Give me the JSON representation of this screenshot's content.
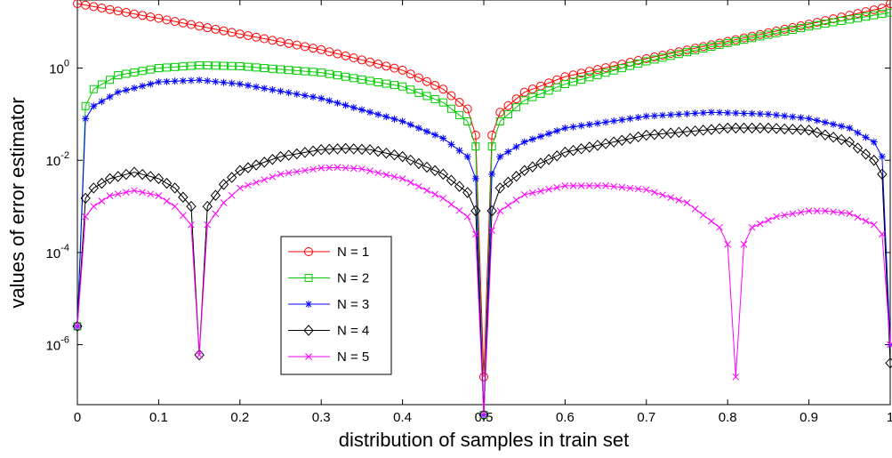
{
  "chart_data": {
    "type": "line",
    "title": "",
    "xlabel": "distribution of samples in train set",
    "ylabel": "values of error estimator",
    "xlim": [
      0,
      1
    ],
    "ylim": [
      5e-08,
      30
    ],
    "yscale": "log",
    "xticks": [
      "0",
      "0.1",
      "0.2",
      "0.3",
      "0.4",
      "0.5",
      "0.6",
      "0.7",
      "0.8",
      "0.9",
      "1"
    ],
    "yticks": [
      {
        "value": 1,
        "label": "10",
        "exp": "0"
      },
      {
        "value": 0.01,
        "label": "10",
        "exp": "-2"
      },
      {
        "value": 0.0001,
        "label": "10",
        "exp": "-4"
      },
      {
        "value": 1e-06,
        "label": "10",
        "exp": "-6"
      }
    ],
    "grid": false,
    "legend_position": "lower-left",
    "series": [
      {
        "name": "N = 1",
        "color": "#ff0000",
        "marker": "circle",
        "x": [
          0,
          0.1,
          0.2,
          0.3,
          0.4,
          0.45,
          0.48,
          0.49,
          0.5,
          0.51,
          0.52,
          0.55,
          0.6,
          0.7,
          0.8,
          0.9,
          0.99,
          1
        ],
        "y": [
          25,
          12,
          5.5,
          2.5,
          0.9,
          0.35,
          0.13,
          0.035,
          2e-07,
          0.035,
          0.11,
          0.3,
          0.65,
          1.6,
          3.8,
          9,
          20,
          25
        ]
      },
      {
        "name": "N = 2",
        "color": "#00cc00",
        "marker": "square",
        "x": [
          0,
          0.01,
          0.02,
          0.05,
          0.1,
          0.15,
          0.2,
          0.3,
          0.4,
          0.45,
          0.48,
          0.49,
          0.5,
          0.51,
          0.52,
          0.55,
          0.6,
          0.7,
          0.8,
          0.9,
          0.99,
          1
        ],
        "y": [
          2.5e-06,
          0.15,
          0.35,
          0.7,
          1.0,
          1.15,
          1.1,
          0.8,
          0.4,
          0.18,
          0.07,
          0.02,
          3e-08,
          0.02,
          0.07,
          0.2,
          0.45,
          1.4,
          3.5,
          8,
          15,
          16
        ]
      },
      {
        "name": "N = 3",
        "color": "#0000ff",
        "marker": "star",
        "x": [
          0,
          0.01,
          0.02,
          0.05,
          0.1,
          0.15,
          0.2,
          0.3,
          0.4,
          0.45,
          0.48,
          0.49,
          0.5,
          0.51,
          0.52,
          0.55,
          0.6,
          0.7,
          0.78,
          0.85,
          0.9,
          0.95,
          0.98,
          0.99,
          1
        ],
        "y": [
          2.5e-06,
          0.08,
          0.15,
          0.3,
          0.5,
          0.55,
          0.45,
          0.22,
          0.07,
          0.03,
          0.012,
          0.004,
          3e-08,
          0.005,
          0.012,
          0.025,
          0.05,
          0.09,
          0.11,
          0.1,
          0.08,
          0.05,
          0.025,
          0.012,
          1e-06
        ]
      },
      {
        "name": "N = 4",
        "color": "#000000",
        "marker": "diamond",
        "x": [
          0,
          0.01,
          0.02,
          0.04,
          0.07,
          0.1,
          0.12,
          0.14,
          0.15,
          0.16,
          0.18,
          0.2,
          0.25,
          0.3,
          0.33,
          0.36,
          0.4,
          0.45,
          0.48,
          0.49,
          0.5,
          0.51,
          0.52,
          0.55,
          0.6,
          0.7,
          0.8,
          0.85,
          0.9,
          0.95,
          0.98,
          0.99,
          1
        ],
        "y": [
          2.5e-06,
          0.0015,
          0.0025,
          0.004,
          0.0055,
          0.004,
          0.0025,
          0.001,
          6e-07,
          0.001,
          0.003,
          0.006,
          0.012,
          0.017,
          0.018,
          0.017,
          0.012,
          0.005,
          0.002,
          0.0008,
          3e-08,
          0.0008,
          0.0025,
          0.006,
          0.015,
          0.035,
          0.05,
          0.05,
          0.045,
          0.025,
          0.01,
          0.005,
          4e-07
        ]
      },
      {
        "name": "N = 5",
        "color": "#ff00ff",
        "marker": "x",
        "x": [
          0,
          0.01,
          0.02,
          0.04,
          0.07,
          0.1,
          0.12,
          0.14,
          0.15,
          0.16,
          0.18,
          0.2,
          0.25,
          0.3,
          0.32,
          0.35,
          0.4,
          0.45,
          0.48,
          0.49,
          0.5,
          0.51,
          0.52,
          0.55,
          0.6,
          0.65,
          0.7,
          0.75,
          0.79,
          0.8,
          0.81,
          0.82,
          0.83,
          0.86,
          0.9,
          0.92,
          0.95,
          0.98,
          0.99,
          1
        ],
        "y": [
          2.5e-06,
          0.0006,
          0.001,
          0.0017,
          0.0022,
          0.0017,
          0.001,
          0.0004,
          6e-07,
          0.0004,
          0.0012,
          0.0025,
          0.005,
          0.0068,
          0.007,
          0.0065,
          0.004,
          0.0015,
          0.0006,
          0.00025,
          3e-08,
          0.0003,
          0.0008,
          0.0018,
          0.0028,
          0.0028,
          0.0023,
          0.0012,
          0.00035,
          0.00015,
          2e-07,
          0.00015,
          0.00035,
          0.0006,
          0.0008,
          0.0008,
          0.0007,
          0.0004,
          0.00025,
          1e-06
        ]
      }
    ]
  }
}
